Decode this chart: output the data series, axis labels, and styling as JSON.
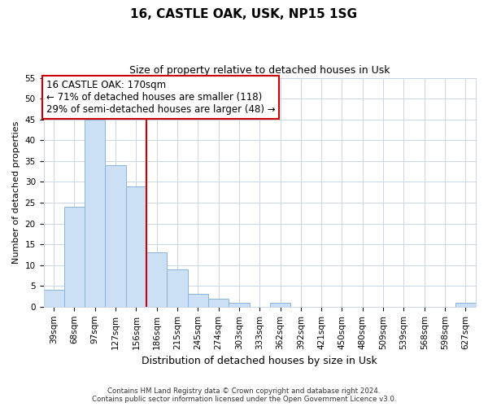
{
  "title": "16, CASTLE OAK, USK, NP15 1SG",
  "subtitle": "Size of property relative to detached houses in Usk",
  "xlabel": "Distribution of detached houses by size in Usk",
  "ylabel": "Number of detached properties",
  "bin_labels": [
    "39sqm",
    "68sqm",
    "97sqm",
    "127sqm",
    "156sqm",
    "186sqm",
    "215sqm",
    "245sqm",
    "274sqm",
    "303sqm",
    "333sqm",
    "362sqm",
    "392sqm",
    "421sqm",
    "450sqm",
    "480sqm",
    "509sqm",
    "539sqm",
    "568sqm",
    "598sqm",
    "627sqm"
  ],
  "bar_values": [
    4,
    24,
    45,
    34,
    29,
    13,
    9,
    3,
    2,
    1,
    0,
    1,
    0,
    0,
    0,
    0,
    0,
    0,
    0,
    0,
    1
  ],
  "bar_color": "#cce0f5",
  "bar_edgecolor": "#8ab4d8",
  "vline_x": 4.5,
  "vline_color": "#cc0000",
  "annotation_title": "16 CASTLE OAK: 170sqm",
  "annotation_line1": "← 71% of detached houses are smaller (118)",
  "annotation_line2": "29% of semi-detached houses are larger (48) →",
  "annotation_box_edgecolor": "#cc0000",
  "ylim": [
    0,
    55
  ],
  "yticks": [
    0,
    5,
    10,
    15,
    20,
    25,
    30,
    35,
    40,
    45,
    50,
    55
  ],
  "footer_line1": "Contains HM Land Registry data © Crown copyright and database right 2024.",
  "footer_line2": "Contains public sector information licensed under the Open Government Licence v3.0.",
  "background_color": "#ffffff",
  "grid_color": "#c8d4e8",
  "title_fontsize": 11,
  "subtitle_fontsize": 9,
  "xlabel_fontsize": 9,
  "ylabel_fontsize": 8,
  "annotation_fontsize": 8.5,
  "tick_fontsize": 7.5
}
